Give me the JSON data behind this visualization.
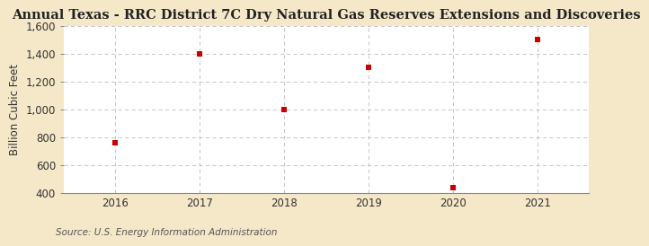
{
  "title": "Annual Texas - RRC District 7C Dry Natural Gas Reserves Extensions and Discoveries",
  "ylabel": "Billion Cubic Feet",
  "source": "Source: U.S. Energy Information Administration",
  "years": [
    2016,
    2017,
    2018,
    2019,
    2020,
    2021
  ],
  "values": [
    760,
    1400,
    1000,
    1305,
    435,
    1505
  ],
  "ylim": [
    400,
    1600
  ],
  "yticks": [
    400,
    600,
    800,
    1000,
    1200,
    1400,
    1600
  ],
  "ytick_labels": [
    "400",
    "600",
    "800",
    "1,000",
    "1,200",
    "1,400",
    "1,600"
  ],
  "marker_color": "#cc0000",
  "marker_style": "s",
  "marker_size": 4,
  "background_color": "#f5e8c8",
  "plot_background_color": "#ffffff",
  "grid_color": "#bbbbbb",
  "title_fontsize": 10.5,
  "label_fontsize": 8.5,
  "tick_fontsize": 8.5,
  "source_fontsize": 7.5
}
